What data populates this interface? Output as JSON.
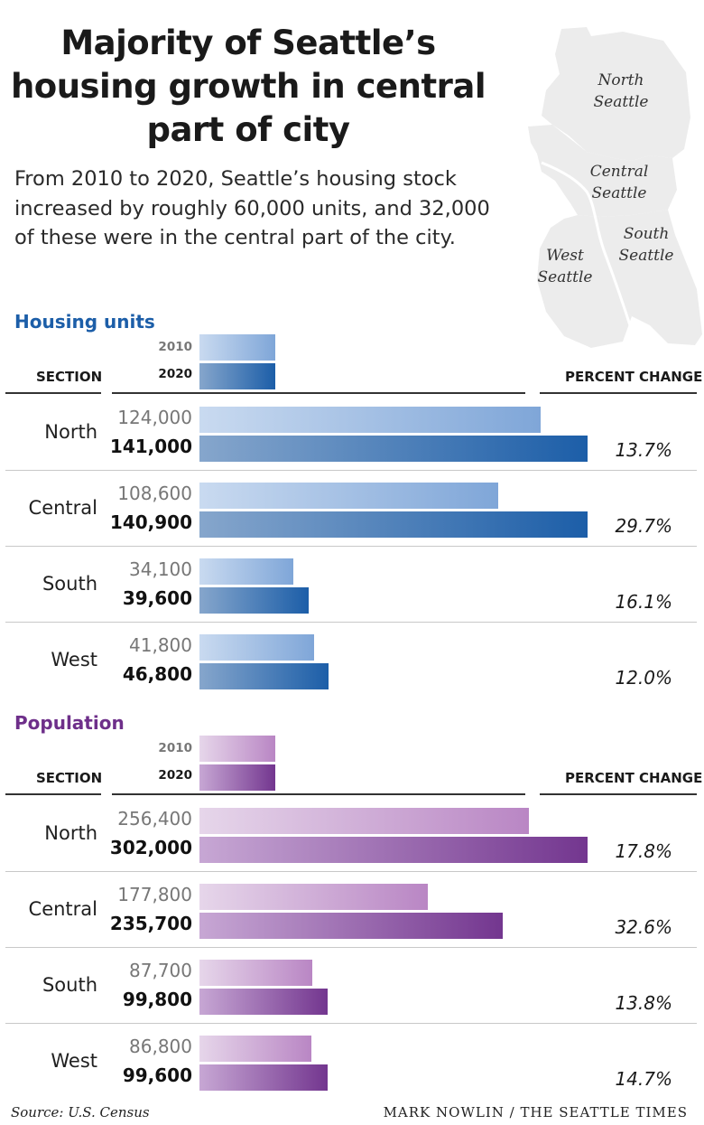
{
  "title": "Majority of Seattle’s housing growth in central part of city",
  "subtitle": "From 2010 to 2020, Seattle’s housing stock increased by roughly 60,000 units, and 32,000 of these were in the central part of the city.",
  "map_labels": {
    "north": [
      "North",
      "Seattle"
    ],
    "central": [
      "Central",
      "Seattle"
    ],
    "south": [
      "South",
      "Seattle"
    ],
    "west": [
      "West",
      "Seattle"
    ]
  },
  "colors": {
    "housing": "#1c5ea8",
    "population": "#6e2f8a"
  },
  "chart_data": [
    {
      "type": "bar",
      "title": "Housing units",
      "section_header": "SECTION",
      "percent_header": "PERCENT CHANGE",
      "legend": [
        "2010",
        "2020"
      ],
      "categories": [
        "North",
        "Central",
        "South",
        "West"
      ],
      "series": [
        {
          "name": "2010",
          "values": [
            124000,
            108600,
            34100,
            41800
          ],
          "labels": [
            "124,000",
            "108,600",
            "34,100",
            "41,800"
          ]
        },
        {
          "name": "2020",
          "values": [
            141000,
            140900,
            39600,
            46800
          ],
          "labels": [
            "141,000",
            "140,900",
            "39,600",
            "46,800"
          ]
        }
      ],
      "percent_change": [
        "13.7%",
        "29.7%",
        "16.1%",
        "12.0%"
      ],
      "xlim": [
        0,
        141000
      ]
    },
    {
      "type": "bar",
      "title": "Population",
      "section_header": "SECTION",
      "percent_header": "PERCENT CHANGE",
      "legend": [
        "2010",
        "2020"
      ],
      "categories": [
        "North",
        "Central",
        "South",
        "West"
      ],
      "series": [
        {
          "name": "2010",
          "values": [
            256400,
            177800,
            87700,
            86800
          ],
          "labels": [
            "256,400",
            "177,800",
            "87,700",
            "86,800"
          ]
        },
        {
          "name": "2020",
          "values": [
            302000,
            235700,
            99800,
            99600
          ],
          "labels": [
            "302,000",
            "235,700",
            "99,800",
            "99,600"
          ]
        }
      ],
      "percent_change": [
        "17.8%",
        "32.6%",
        "13.8%",
        "14.7%"
      ],
      "xlim": [
        0,
        302000
      ]
    }
  ],
  "source": "Source: U.S. Census",
  "credit": "MARK NOWLIN / THE SEATTLE TIMES"
}
